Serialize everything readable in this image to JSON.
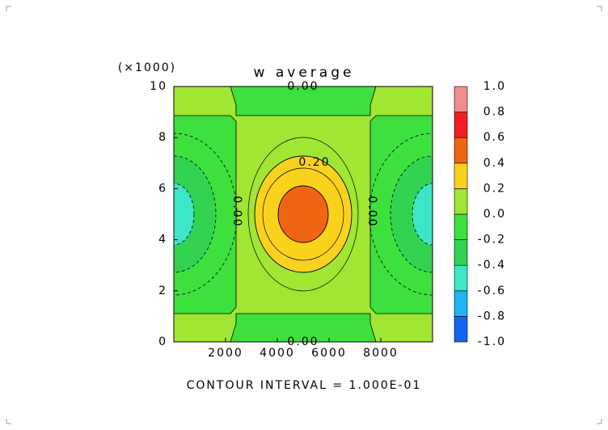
{
  "chart_data": {
    "type": "contour",
    "title": "w average",
    "y_multiplier": "(×1000)",
    "footer": "CONTOUR INTERVAL = 1.000E-01",
    "xlim": [
      0,
      10000
    ],
    "xticks": [
      2000,
      4000,
      6000,
      8000
    ],
    "ylim": [
      0,
      10
    ],
    "yticks": [
      0,
      2,
      4,
      6,
      8,
      10
    ],
    "levels": [
      {
        "value": -1,
        "label": "-1.0"
      },
      {
        "value": -0.8,
        "label": "-0.8"
      },
      {
        "value": -0.6,
        "label": "-0.6"
      },
      {
        "value": -0.4,
        "label": "-0.4"
      },
      {
        "value": -0.2,
        "label": "-0.2"
      },
      {
        "value": 0,
        "label": "0.0"
      },
      {
        "value": 0.2,
        "label": "0.2"
      },
      {
        "value": 0.4,
        "label": "0.4"
      },
      {
        "value": 0.6,
        "label": "0.6"
      },
      {
        "value": 0.8,
        "label": "0.8"
      },
      {
        "value": 1,
        "label": "1.0"
      }
    ],
    "colors": [
      "#1464f0",
      "#1eb4f0",
      "#3ee6c8",
      "#32d250",
      "#3ee03e",
      "#a0e632",
      "#fad21e",
      "#f06414",
      "#f01e1e",
      "#f08c8c"
    ],
    "contour_labels": [
      "0.00",
      "0.00",
      "0.20",
      "0.00",
      "0.00"
    ]
  }
}
